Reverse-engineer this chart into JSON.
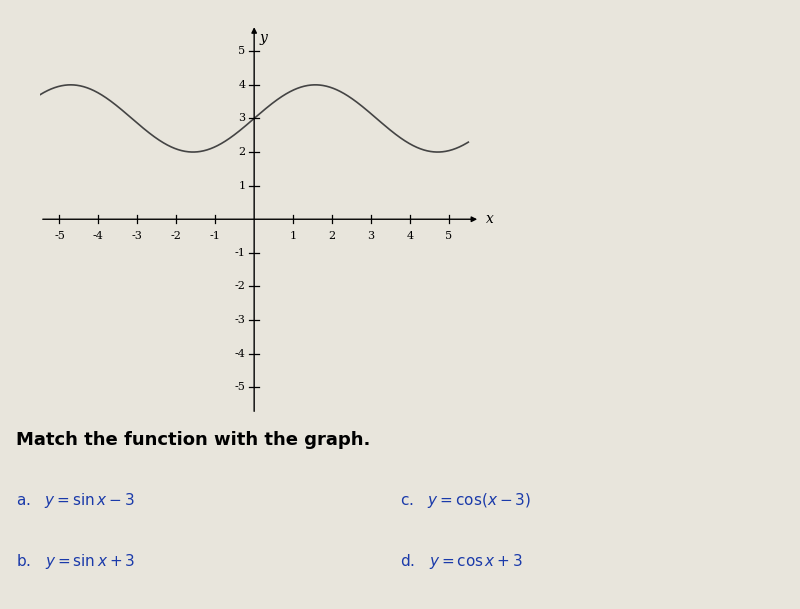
{
  "xlim": [
    -5.5,
    5.8
  ],
  "ylim": [
    -5.8,
    5.8
  ],
  "xticks": [
    -5,
    -4,
    -3,
    -2,
    -1,
    1,
    2,
    3,
    4,
    5
  ],
  "yticks": [
    -5,
    -4,
    -3,
    -2,
    -1,
    1,
    2,
    3,
    4,
    5
  ],
  "curve_color": "#444444",
  "bg_color": "#e8e5dc",
  "question": "Match the function with the graph.",
  "x_label": "x",
  "y_label": "y",
  "curve_xmin": -5.5,
  "curve_xmax": 5.5,
  "text_color_options": "#1a3aaa",
  "text_color_question": "#000000",
  "fontsize_ticks": 8,
  "fontsize_labels": 10,
  "fontsize_question": 13,
  "fontsize_options": 11
}
